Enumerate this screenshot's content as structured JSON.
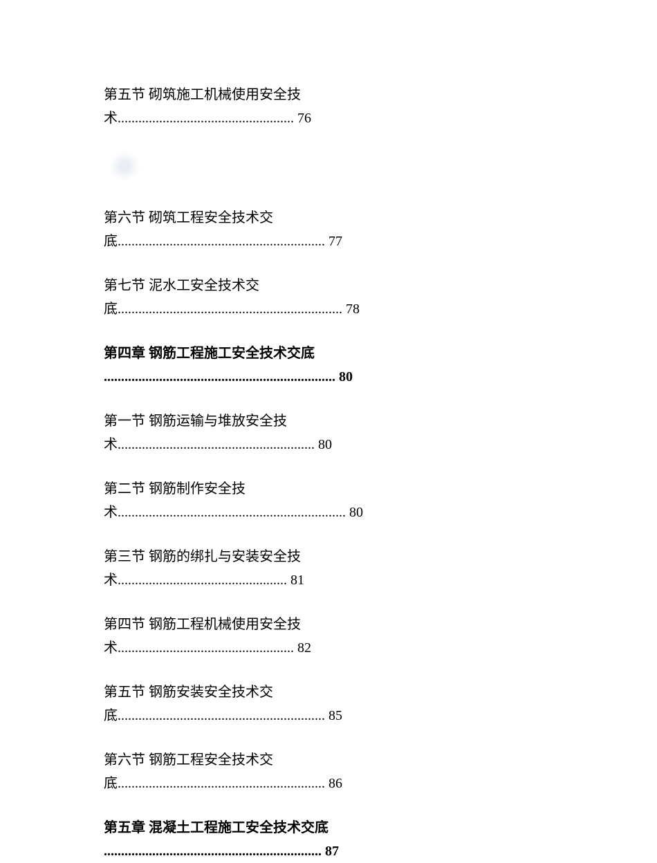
{
  "entries": [
    {
      "line1": "第五节 砌筑施工机械使用安全技",
      "line2": "术................................................... 76",
      "bold": false,
      "id": "section-5-5"
    },
    {
      "line1": "第六节 砌筑工程安全技术交",
      "line2": "底............................................................ 77",
      "bold": false,
      "id": "section-5-6"
    },
    {
      "line1": "第七节 泥水工安全技术交",
      "line2": "底................................................................. 78",
      "bold": false,
      "id": "section-5-7"
    },
    {
      "line1": "第四章 钢筋工程施工安全技术交底",
      "line2": "................................................................... 80",
      "bold": true,
      "id": "chapter-4"
    },
    {
      "line1": "第一节 钢筋运输与堆放安全技",
      "line2": "术......................................................... 80",
      "bold": false,
      "id": "section-4-1"
    },
    {
      "line1": "第二节 钢筋制作安全技",
      "line2": "术.................................................................. 80",
      "bold": false,
      "id": "section-4-2"
    },
    {
      "line1": "第三节 钢筋的绑扎与安装安全技",
      "line2": "术................................................. 81",
      "bold": false,
      "id": "section-4-3"
    },
    {
      "line1": "第四节 钢筋工程机械使用安全技",
      "line2": "术................................................... 82",
      "bold": false,
      "id": "section-4-4"
    },
    {
      "line1": "第五节 钢筋安装安全技术交",
      "line2": "底............................................................ 85",
      "bold": false,
      "id": "section-4-5"
    },
    {
      "line1": "第六节 钢筋工程安全技术交",
      "line2": "底............................................................ 86",
      "bold": false,
      "id": "section-4-6"
    },
    {
      "line1": "第五章 混凝土工程施工安全技术交底",
      "line2": "............................................................... 87",
      "bold": true,
      "id": "chapter-5"
    }
  ],
  "watermark_after_index": 0
}
